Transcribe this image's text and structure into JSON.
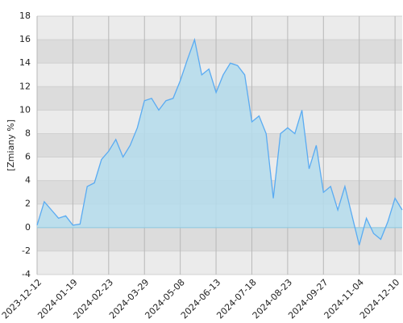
{
  "chart_data": {
    "type": "area",
    "y_label": "[Zmiany %]",
    "categories": [
      "2023-12-12",
      null,
      null,
      null,
      null,
      "2024-01-19",
      null,
      null,
      null,
      null,
      "2024-02-23",
      null,
      null,
      null,
      null,
      "2024-03-29",
      null,
      null,
      null,
      null,
      "2024-05-08",
      null,
      null,
      null,
      null,
      "2024-06-13",
      null,
      null,
      null,
      null,
      "2024-07-18",
      null,
      null,
      null,
      null,
      "2024-08-23",
      null,
      null,
      null,
      null,
      "2024-09-27",
      null,
      null,
      null,
      null,
      "2024-11-04",
      null,
      null,
      null,
      null,
      "2024-12-10",
      null
    ],
    "values": [
      0.2,
      2.2,
      1.5,
      0.8,
      1.0,
      0.2,
      0.3,
      3.5,
      3.8,
      5.8,
      6.5,
      7.5,
      6.0,
      7.0,
      8.5,
      10.8,
      11.0,
      10.0,
      10.8,
      11.0,
      12.5,
      14.3,
      16.0,
      13.0,
      13.5,
      11.5,
      13.0,
      14.0,
      13.8,
      13.0,
      9.0,
      9.5,
      8.0,
      2.5,
      8.0,
      8.5,
      8.0,
      10.0,
      5.0,
      7.0,
      3.0,
      3.5,
      1.5,
      3.5,
      1.0,
      -1.5,
      0.8,
      -0.5,
      -1.0,
      0.5,
      2.5,
      1.5
    ],
    "color": "#5aabf2",
    "fill_color": "#b4dcec",
    "ylim": [
      -4,
      18
    ],
    "yticks": [
      -4,
      -2,
      0,
      2,
      4,
      6,
      8,
      10,
      12,
      14,
      16,
      18
    ],
    "grid": true
  }
}
